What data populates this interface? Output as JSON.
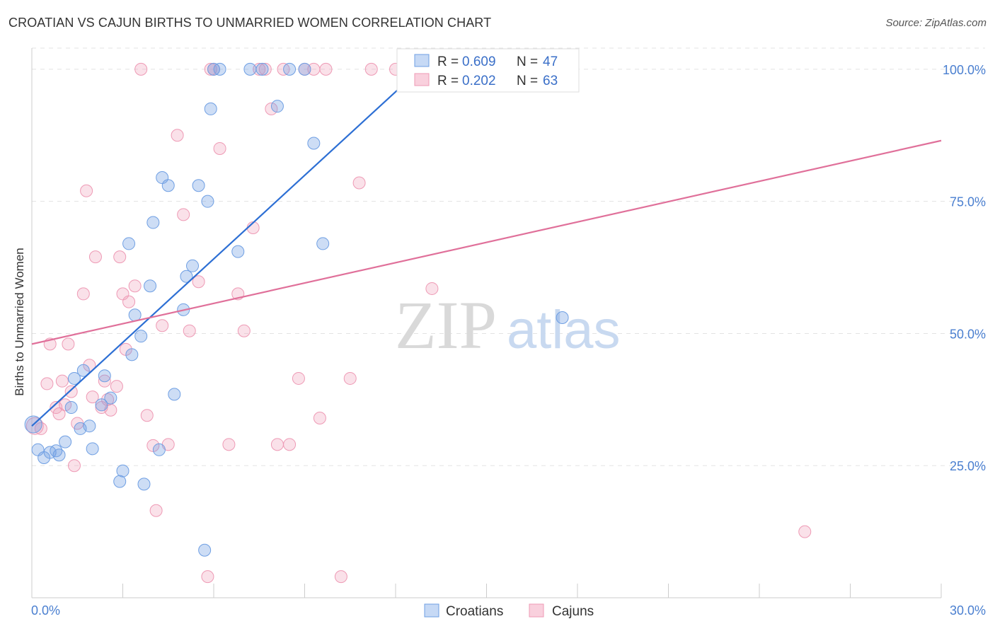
{
  "header": {
    "title": "CROATIAN VS CAJUN BIRTHS TO UNMARRIED WOMEN CORRELATION CHART",
    "source": "Source: ZipAtlas.com"
  },
  "watermark": {
    "zip": "ZIP",
    "atlas": "atlas"
  },
  "legend": {
    "rows": [
      {
        "r_label": "R = ",
        "r_value": "0.609",
        "n_label": "N = ",
        "n_value": "47"
      },
      {
        "r_label": "R = ",
        "r_value": "0.202",
        "n_label": "N = ",
        "n_value": "63"
      }
    ]
  },
  "bottom_legend": {
    "croatians": "Croatians",
    "cajuns": "Cajuns"
  },
  "chart_data": {
    "type": "scatter",
    "title": "CROATIAN VS CAJUN BIRTHS TO UNMARRIED WOMEN CORRELATION CHART",
    "xlabel": "",
    "ylabel": "Births to Unmarried Women",
    "xlim": [
      0,
      30
    ],
    "ylim": [
      0,
      104
    ],
    "x_tick_labels": {
      "min": "0.0%",
      "max": "30.0%"
    },
    "y_ticks": [
      {
        "value": 25,
        "label": "25.0%"
      },
      {
        "value": 50,
        "label": "50.0%"
      },
      {
        "value": 75,
        "label": "75.0%"
      },
      {
        "value": 100,
        "label": "100.0%"
      }
    ],
    "grid": true,
    "colors": {
      "croatians": "#6f9fe3",
      "cajuns": "#ee9ab5",
      "croatians_line": "#2d6fd4",
      "cajuns_line": "#e0709a"
    },
    "series": [
      {
        "name": "Croatians",
        "trend": {
          "x": [
            0.0,
            13.0
          ],
          "y": [
            32.5,
            101.0
          ]
        },
        "points": [
          [
            0.05,
            32.8
          ],
          [
            0.2,
            28.0
          ],
          [
            0.4,
            26.5
          ],
          [
            0.6,
            27.5
          ],
          [
            0.8,
            27.8
          ],
          [
            0.9,
            27.0
          ],
          [
            1.1,
            29.5
          ],
          [
            1.3,
            36.0
          ],
          [
            1.4,
            41.5
          ],
          [
            1.6,
            32.0
          ],
          [
            1.7,
            43.0
          ],
          [
            1.9,
            32.5
          ],
          [
            2.0,
            28.2
          ],
          [
            2.3,
            36.5
          ],
          [
            2.4,
            42.0
          ],
          [
            2.6,
            37.8
          ],
          [
            2.9,
            22.0
          ],
          [
            3.0,
            24.0
          ],
          [
            3.2,
            67.0
          ],
          [
            3.3,
            46.0
          ],
          [
            3.4,
            53.5
          ],
          [
            3.6,
            49.5
          ],
          [
            3.7,
            21.5
          ],
          [
            3.9,
            59.0
          ],
          [
            4.0,
            71.0
          ],
          [
            4.2,
            28.0
          ],
          [
            4.3,
            79.5
          ],
          [
            4.5,
            78.0
          ],
          [
            4.7,
            38.5
          ],
          [
            5.0,
            54.5
          ],
          [
            5.1,
            60.8
          ],
          [
            5.3,
            62.8
          ],
          [
            5.5,
            78.0
          ],
          [
            5.7,
            9.0
          ],
          [
            5.8,
            75.0
          ],
          [
            5.9,
            92.5
          ],
          [
            6.0,
            100.0
          ],
          [
            6.2,
            100.0
          ],
          [
            6.8,
            65.5
          ],
          [
            7.2,
            100.0
          ],
          [
            7.6,
            100.0
          ],
          [
            8.1,
            93.0
          ],
          [
            8.5,
            100.0
          ],
          [
            9.0,
            100.0
          ],
          [
            9.3,
            86.0
          ],
          [
            9.6,
            67.0
          ],
          [
            17.5,
            53.0
          ]
        ]
      },
      {
        "name": "Cajuns",
        "trend": {
          "x": [
            0.0,
            30.0
          ],
          "y": [
            48.0,
            86.5
          ]
        },
        "points": [
          [
            0.1,
            32.5
          ],
          [
            0.3,
            32.0
          ],
          [
            0.5,
            40.5
          ],
          [
            0.6,
            48.0
          ],
          [
            0.8,
            36.0
          ],
          [
            0.9,
            34.8
          ],
          [
            1.0,
            41.0
          ],
          [
            1.1,
            36.5
          ],
          [
            1.2,
            48.0
          ],
          [
            1.3,
            39.0
          ],
          [
            1.4,
            25.0
          ],
          [
            1.5,
            33.0
          ],
          [
            1.7,
            57.5
          ],
          [
            1.8,
            77.0
          ],
          [
            1.9,
            44.0
          ],
          [
            2.0,
            38.0
          ],
          [
            2.1,
            64.5
          ],
          [
            2.3,
            36.0
          ],
          [
            2.4,
            41.0
          ],
          [
            2.5,
            37.5
          ],
          [
            2.6,
            35.5
          ],
          [
            2.8,
            40.0
          ],
          [
            2.9,
            64.5
          ],
          [
            3.0,
            57.5
          ],
          [
            3.1,
            47.0
          ],
          [
            3.2,
            56.0
          ],
          [
            3.4,
            59.0
          ],
          [
            3.6,
            100.0
          ],
          [
            3.8,
            34.5
          ],
          [
            4.0,
            28.8
          ],
          [
            4.1,
            16.5
          ],
          [
            4.3,
            51.5
          ],
          [
            4.5,
            29.0
          ],
          [
            4.8,
            87.5
          ],
          [
            5.0,
            72.5
          ],
          [
            5.2,
            50.5
          ],
          [
            5.5,
            59.8
          ],
          [
            5.8,
            4.0
          ],
          [
            5.9,
            100.0
          ],
          [
            6.0,
            100.0
          ],
          [
            6.2,
            85.0
          ],
          [
            6.5,
            29.0
          ],
          [
            6.8,
            57.5
          ],
          [
            7.0,
            50.5
          ],
          [
            7.3,
            70.0
          ],
          [
            7.5,
            100.0
          ],
          [
            7.7,
            100.0
          ],
          [
            7.9,
            92.5
          ],
          [
            8.1,
            29.0
          ],
          [
            8.3,
            100.0
          ],
          [
            8.5,
            29.0
          ],
          [
            8.8,
            41.5
          ],
          [
            9.0,
            100.0
          ],
          [
            9.3,
            100.0
          ],
          [
            9.5,
            34.0
          ],
          [
            9.7,
            100.0
          ],
          [
            10.2,
            4.0
          ],
          [
            10.5,
            41.5
          ],
          [
            10.8,
            78.5
          ],
          [
            11.2,
            100.0
          ],
          [
            12.0,
            100.0
          ],
          [
            13.2,
            58.5
          ],
          [
            25.5,
            12.5
          ]
        ]
      }
    ]
  }
}
